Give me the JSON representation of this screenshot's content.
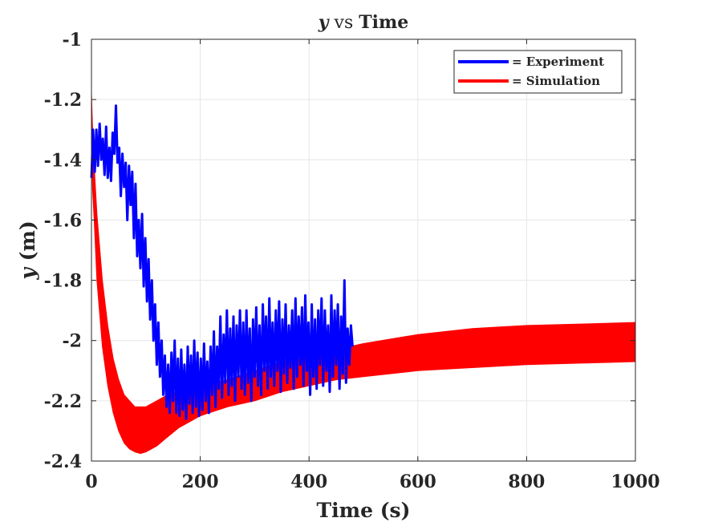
{
  "chart_data": {
    "type": "line",
    "title_var": "y",
    "title_rest": " vs ",
    "title_word": "Time",
    "xlabel": "Time (s)",
    "ylabel_var": "y",
    "ylabel_unit": " (m)",
    "xlim": [
      0,
      1000
    ],
    "ylim": [
      -2.4,
      -1.0
    ],
    "xticks": [
      0,
      200,
      400,
      600,
      800,
      1000
    ],
    "yticks": [
      -2.4,
      -2.2,
      -2.0,
      -1.8,
      -1.6,
      -1.4,
      -1.2,
      -1.0
    ],
    "xtick_labels": [
      "0",
      "200",
      "400",
      "600",
      "800",
      "1000"
    ],
    "ytick_labels": [
      "-2.4",
      "-2.2",
      "-2",
      "-1.8",
      "-1.6",
      "-1.4",
      "-1.2",
      "-1"
    ],
    "grid": true,
    "legend_position": "top-right",
    "series": [
      {
        "name": "= Experiment",
        "color": "#0000ff",
        "x": [
          0,
          3,
          6,
          9,
          12,
          15,
          18,
          21,
          24,
          27,
          30,
          33,
          36,
          39,
          42,
          45,
          48,
          51,
          54,
          57,
          60,
          63,
          66,
          69,
          72,
          75,
          78,
          81,
          84,
          87,
          90,
          93,
          96,
          99,
          102,
          105,
          108,
          111,
          114,
          117,
          120,
          123,
          126,
          129,
          132,
          135,
          138,
          141,
          144,
          147,
          150,
          153,
          156,
          159,
          162,
          165,
          168,
          171,
          174,
          177,
          180,
          183,
          186,
          189,
          192,
          195,
          198,
          201,
          204,
          207,
          210,
          213,
          216,
          219,
          222,
          225,
          228,
          231,
          234,
          237,
          240,
          243,
          246,
          249,
          252,
          255,
          258,
          261,
          264,
          267,
          270,
          273,
          276,
          279,
          282,
          285,
          288,
          291,
          294,
          297,
          300,
          303,
          306,
          309,
          312,
          315,
          318,
          321,
          324,
          327,
          330,
          333,
          336,
          339,
          342,
          345,
          348,
          351,
          354,
          357,
          360,
          363,
          366,
          369,
          372,
          375,
          378,
          381,
          384,
          387,
          390,
          393,
          396,
          399,
          402,
          405,
          408,
          411,
          414,
          417,
          420,
          423,
          426,
          429,
          432,
          435,
          438,
          441,
          444,
          447,
          450,
          453,
          456,
          459,
          462,
          465,
          468,
          471,
          474,
          477,
          480
        ],
        "y": [
          -1.46,
          -1.3,
          -1.44,
          -1.3,
          -1.42,
          -1.28,
          -1.4,
          -1.33,
          -1.45,
          -1.29,
          -1.46,
          -1.36,
          -1.47,
          -1.31,
          -1.38,
          -1.22,
          -1.41,
          -1.36,
          -1.52,
          -1.38,
          -1.49,
          -1.41,
          -1.6,
          -1.42,
          -1.55,
          -1.44,
          -1.66,
          -1.48,
          -1.72,
          -1.6,
          -1.76,
          -1.58,
          -1.82,
          -1.66,
          -1.87,
          -1.73,
          -1.93,
          -1.8,
          -2.0,
          -1.88,
          -2.08,
          -1.94,
          -2.12,
          -2.0,
          -2.18,
          -2.05,
          -2.22,
          -2.08,
          -2.24,
          -2.04,
          -2.2,
          -2.0,
          -2.24,
          -2.06,
          -2.25,
          -2.03,
          -2.23,
          -2.08,
          -2.26,
          -2.02,
          -2.21,
          -2.05,
          -2.24,
          -2.0,
          -2.22,
          -2.04,
          -2.25,
          -2.06,
          -2.23,
          -2.01,
          -2.2,
          -2.07,
          -2.24,
          -2.02,
          -2.18,
          -1.97,
          -2.22,
          -2.02,
          -2.16,
          -1.92,
          -2.19,
          -1.98,
          -2.14,
          -1.9,
          -2.18,
          -1.96,
          -2.15,
          -1.92,
          -2.2,
          -1.95,
          -2.12,
          -1.9,
          -2.16,
          -1.94,
          -2.18,
          -1.9,
          -2.14,
          -1.96,
          -2.2,
          -1.93,
          -2.12,
          -1.89,
          -2.15,
          -1.95,
          -2.18,
          -1.88,
          -2.1,
          -1.92,
          -2.16,
          -1.86,
          -2.12,
          -1.94,
          -2.15,
          -1.9,
          -2.1,
          -1.87,
          -2.17,
          -1.93,
          -2.11,
          -1.88,
          -2.14,
          -1.95,
          -2.09,
          -1.9,
          -2.16,
          -1.86,
          -2.12,
          -1.92,
          -2.08,
          -1.89,
          -2.15,
          -1.85,
          -2.1,
          -1.94,
          -2.18,
          -1.88,
          -2.12,
          -1.93,
          -2.16,
          -1.9,
          -2.08,
          -1.86,
          -2.15,
          -1.9,
          -2.1,
          -1.95,
          -2.17,
          -1.85,
          -2.12,
          -1.9,
          -2.08,
          -1.88,
          -2.16,
          -1.92,
          -2.11,
          -1.8,
          -2.14,
          -1.96,
          -2.08,
          -1.95,
          -2.02
        ]
      },
      {
        "name": "= Simulation",
        "color": "#ff0000",
        "band_x": [
          0,
          2,
          5,
          10,
          20,
          30,
          40,
          50,
          60,
          70,
          80,
          90,
          100,
          110,
          120,
          140,
          160,
          180,
          200,
          250,
          300,
          350,
          400,
          450,
          500,
          600,
          700,
          800,
          900,
          1000
        ],
        "band_upper": [
          -1.18,
          -1.3,
          -1.42,
          -1.58,
          -1.8,
          -1.95,
          -2.06,
          -2.13,
          -2.18,
          -2.2,
          -2.22,
          -2.22,
          -2.22,
          -2.21,
          -2.2,
          -2.18,
          -2.17,
          -2.16,
          -2.15,
          -2.13,
          -2.1,
          -2.07,
          -2.05,
          -2.03,
          -2.01,
          -1.98,
          -1.96,
          -1.95,
          -1.945,
          -1.94
        ],
        "band_lower": [
          -1.3,
          -1.5,
          -1.6,
          -1.8,
          -2.02,
          -2.15,
          -2.24,
          -2.3,
          -2.34,
          -2.36,
          -2.37,
          -2.375,
          -2.37,
          -2.36,
          -2.35,
          -2.32,
          -2.29,
          -2.27,
          -2.25,
          -2.22,
          -2.2,
          -2.17,
          -2.15,
          -2.13,
          -2.12,
          -2.1,
          -2.09,
          -2.08,
          -2.075,
          -2.07
        ]
      }
    ]
  }
}
